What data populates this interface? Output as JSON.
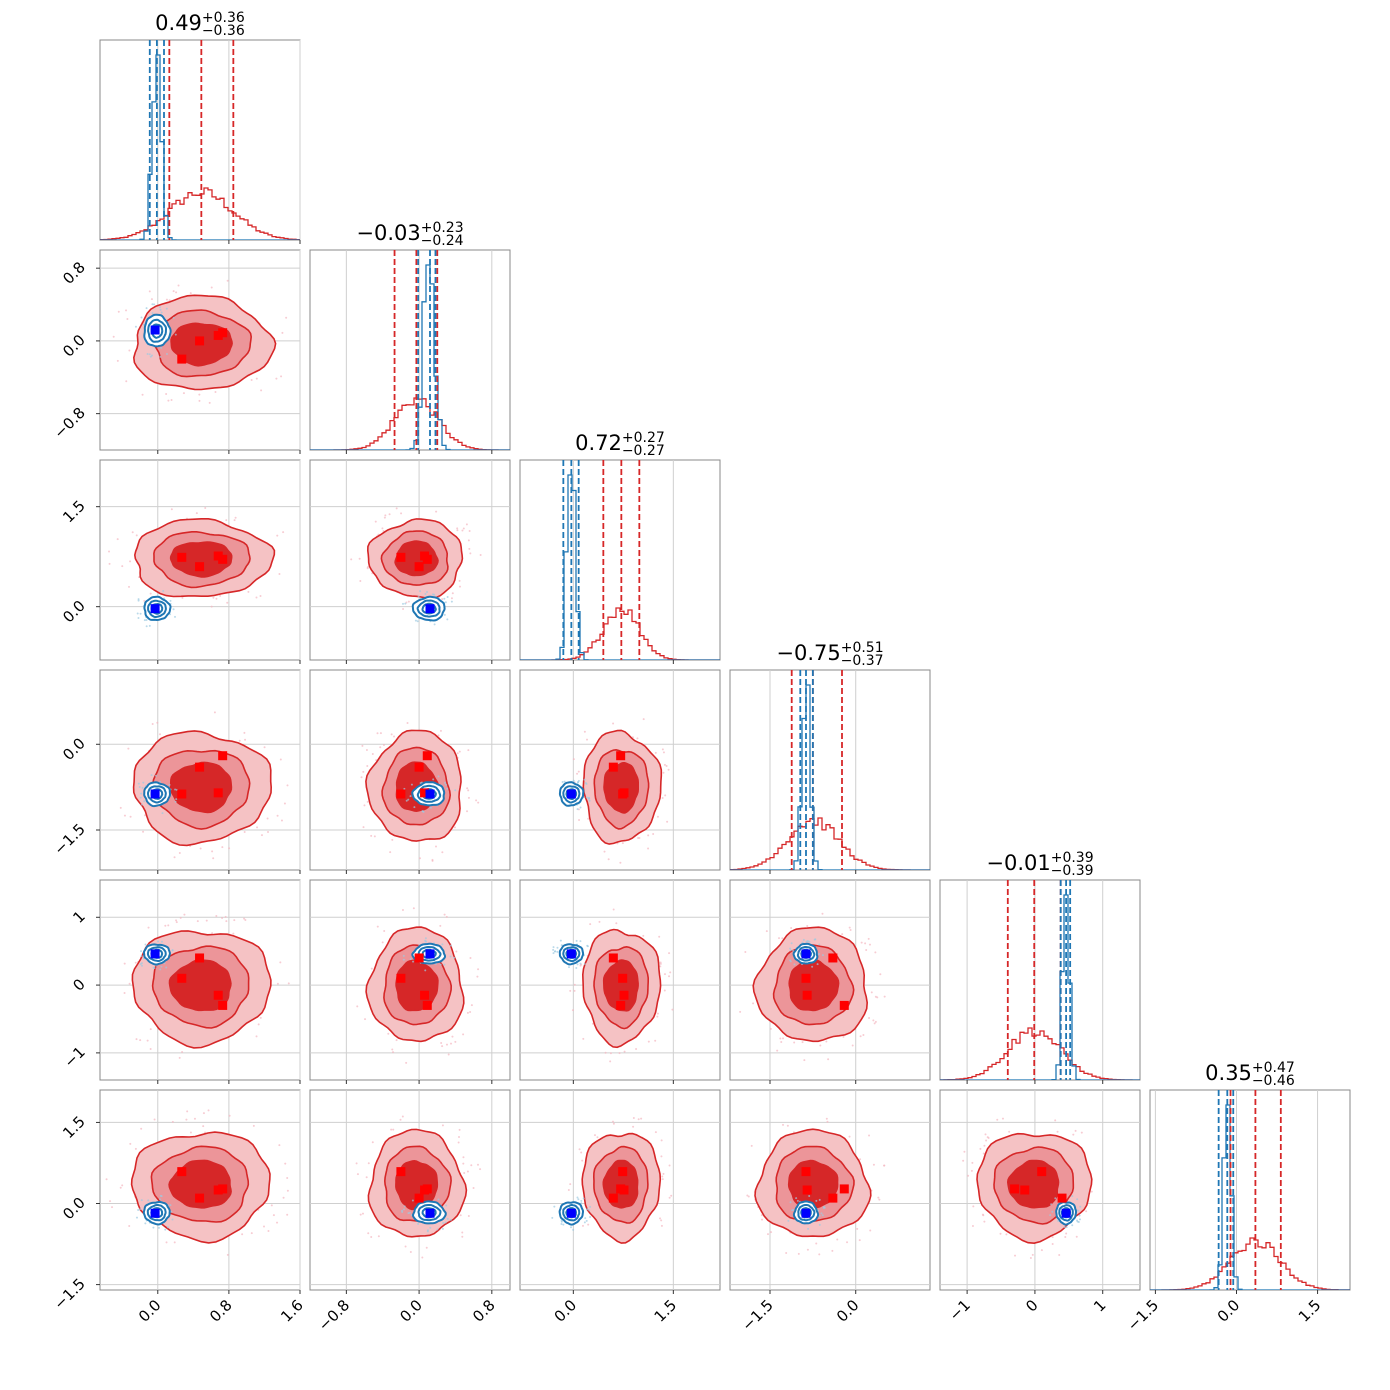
{
  "chart_data": {
    "type": "corner",
    "n_params": 6,
    "colors": {
      "red": "#d62728",
      "blue": "#1f77b4",
      "marker_blue": "#0000ff",
      "marker_red": "#ff0000"
    },
    "grid": true,
    "params": [
      {
        "range": [
          -0.65,
          1.6
        ],
        "ticks": [
          0.0,
          0.8,
          1.6
        ],
        "tick_labels": [
          "0.0",
          "0.8",
          "1.6"
        ],
        "title": {
          "median": "0.49",
          "upper": "+0.36",
          "lower": "−0.36"
        },
        "red_quantiles": [
          0.13,
          0.49,
          0.85
        ],
        "blue_quantiles": [
          -0.09,
          -0.01,
          0.07
        ],
        "red_dist": {
          "mean": 0.49,
          "sd": 0.36
        },
        "blue_dist": {
          "mean": -0.01,
          "sd": 0.05
        }
      },
      {
        "range": [
          -1.2,
          1.0
        ],
        "ticks": [
          -0.8,
          0.0,
          0.8
        ],
        "tick_labels": [
          "−0.8",
          "0.0",
          "0.8"
        ],
        "title": {
          "median": "−0.03",
          "upper": "+0.23",
          "lower": "−0.24"
        },
        "red_quantiles": [
          -0.27,
          -0.03,
          0.2
        ],
        "blue_quantiles": [
          -0.01,
          0.12,
          0.18
        ],
        "red_dist": {
          "mean": -0.03,
          "sd": 0.24
        },
        "blue_dist": {
          "mean": 0.11,
          "sd": 0.06
        }
      },
      {
        "range": [
          -0.8,
          2.2
        ],
        "ticks": [
          0.0,
          1.5
        ],
        "tick_labels": [
          "0.0",
          "1.5"
        ],
        "title": {
          "median": "0.72",
          "upper": "+0.27",
          "lower": "−0.27"
        },
        "red_quantiles": [
          0.45,
          0.72,
          0.99
        ],
        "blue_quantiles": [
          -0.15,
          -0.03,
          0.08
        ],
        "red_dist": {
          "mean": 0.72,
          "sd": 0.27
        },
        "blue_dist": {
          "mean": -0.03,
          "sd": 0.06
        }
      },
      {
        "range": [
          -2.2,
          1.3
        ],
        "ticks": [
          -1.5,
          0.0
        ],
        "tick_labels": [
          "−1.5",
          "0.0"
        ],
        "title": {
          "median": "−0.75",
          "upper": "+0.51",
          "lower": "−0.37"
        },
        "red_quantiles": [
          -1.12,
          -0.75,
          -0.24
        ],
        "blue_quantiles": [
          -0.97,
          -0.87,
          -0.75
        ],
        "red_dist": {
          "mean": -0.75,
          "sd": 0.45
        },
        "blue_dist": {
          "mean": -0.87,
          "sd": 0.07
        }
      },
      {
        "range": [
          -1.4,
          1.55
        ],
        "ticks": [
          -1,
          0,
          1
        ],
        "tick_labels": [
          "−1",
          "0",
          "1"
        ],
        "title": {
          "median": "−0.01",
          "upper": "+0.39",
          "lower": "−0.39"
        },
        "red_quantiles": [
          -0.4,
          -0.01,
          0.38
        ],
        "blue_quantiles": [
          0.38,
          0.46,
          0.52
        ],
        "red_dist": {
          "mean": -0.01,
          "sd": 0.39
        },
        "blue_dist": {
          "mean": 0.46,
          "sd": 0.05
        }
      },
      {
        "range": [
          -1.6,
          2.1
        ],
        "ticks": [
          -1.5,
          0.0,
          1.5
        ],
        "tick_labels": [
          "−1.5",
          "0.0",
          "1.5"
        ],
        "title": {
          "median": "0.35",
          "upper": "+0.47",
          "lower": "−0.46"
        },
        "red_quantiles": [
          -0.11,
          0.35,
          0.82
        ],
        "blue_quantiles": [
          -0.33,
          -0.17,
          -0.06
        ],
        "red_dist": {
          "mean": 0.35,
          "sd": 0.46
        },
        "blue_dist": {
          "mean": -0.17,
          "sd": 0.07
        }
      }
    ],
    "blue_markers": [
      -0.03,
      0.12,
      -0.03,
      -0.87,
      0.46,
      -0.18
    ],
    "red_markers": [
      [
        0.27,
        -0.2,
        0.74,
        -0.87,
        0.1,
        0.59
      ],
      [
        0.47,
        0.0,
        0.6,
        -0.4,
        0.4,
        0.1
      ],
      [
        0.68,
        0.06,
        0.76,
        -0.85,
        -0.15,
        0.25
      ],
      [
        0.73,
        0.09,
        0.71,
        -0.2,
        -0.3,
        0.27
      ]
    ]
  }
}
